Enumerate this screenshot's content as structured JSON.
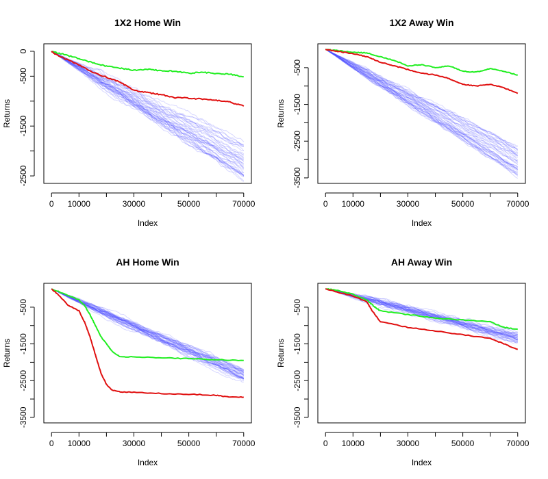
{
  "figure": {
    "x_axis_label": "Index",
    "y_axis_label": "Returns"
  },
  "colors": {
    "random_series": "#4d4dff",
    "green_series": "#22ee22",
    "red_series": "#e01010"
  },
  "chart_data": [
    {
      "type": "line",
      "title": "1X2 Home Win",
      "xlabel": "Index",
      "ylabel": "Returns",
      "xlim": [
        -2800,
        72800
      ],
      "ylim": [
        -2650,
        150
      ],
      "x_ticks": [
        0,
        10000,
        30000,
        50000,
        70000
      ],
      "x_tick_labels": [
        "0",
        "10000",
        "30000",
        "50000",
        "70000"
      ],
      "x_minor_ticks": [
        20000,
        40000,
        60000
      ],
      "y_ticks": [
        0,
        -500,
        -1500,
        -2500
      ],
      "y_tick_labels": [
        "0",
        "-500",
        "-1500",
        "-2500"
      ],
      "y_minor_ticks": [
        -1000,
        -2000
      ],
      "random_band": {
        "count": 40,
        "x_end": 70000,
        "end_mean": -2200,
        "end_spread": 380,
        "color": "#4d4dff",
        "seed": 11
      },
      "series": [
        {
          "color": "#22ee22",
          "x": [
            0,
            2000,
            5000,
            10000,
            15000,
            20000,
            25000,
            30000,
            35000,
            40000,
            45000,
            50000,
            55000,
            60000,
            65000,
            70000
          ],
          "y": [
            0,
            -30,
            -70,
            -150,
            -230,
            -300,
            -340,
            -380,
            -360,
            -390,
            -400,
            -440,
            -420,
            -450,
            -460,
            -510
          ]
        },
        {
          "color": "#e01010",
          "x": [
            0,
            2000,
            5000,
            10000,
            15000,
            20000,
            25000,
            30000,
            35000,
            40000,
            45000,
            50000,
            55000,
            60000,
            65000,
            70000
          ],
          "y": [
            0,
            -80,
            -150,
            -280,
            -420,
            -520,
            -620,
            -780,
            -830,
            -870,
            -930,
            -940,
            -960,
            -980,
            -1020,
            -1100
          ]
        }
      ]
    },
    {
      "type": "line",
      "title": "1X2 Away Win",
      "xlabel": "Index",
      "ylabel": "Returns",
      "xlim": [
        -2800,
        72800
      ],
      "ylim": [
        -3650,
        150
      ],
      "x_ticks": [
        0,
        10000,
        30000,
        50000,
        70000
      ],
      "x_tick_labels": [
        "0",
        "10000",
        "30000",
        "50000",
        "70000"
      ],
      "x_minor_ticks": [
        20000,
        40000,
        60000
      ],
      "y_ticks": [
        -500,
        -1500,
        -2500,
        -3500
      ],
      "y_tick_labels": [
        "-500",
        "-1500",
        "-2500",
        "-3500"
      ],
      "y_minor_ticks": [
        -1000,
        -2000,
        -3000
      ],
      "random_band": {
        "count": 40,
        "x_end": 70000,
        "end_mean": -3050,
        "end_spread": 420,
        "color": "#4d4dff",
        "seed": 23
      },
      "series": [
        {
          "color": "#22ee22",
          "x": [
            0,
            2000,
            5000,
            10000,
            15000,
            20000,
            25000,
            30000,
            35000,
            40000,
            45000,
            50000,
            55000,
            60000,
            65000,
            70000
          ],
          "y": [
            0,
            -20,
            -40,
            -80,
            -100,
            -200,
            -300,
            -450,
            -420,
            -500,
            -450,
            -600,
            -620,
            -520,
            -600,
            -700
          ]
        },
        {
          "color": "#e01010",
          "x": [
            0,
            2000,
            5000,
            10000,
            15000,
            20000,
            25000,
            30000,
            35000,
            40000,
            45000,
            50000,
            55000,
            60000,
            65000,
            70000
          ],
          "y": [
            0,
            -30,
            -60,
            -120,
            -200,
            -350,
            -450,
            -550,
            -650,
            -700,
            -800,
            -950,
            -1000,
            -950,
            -1050,
            -1200
          ]
        }
      ]
    },
    {
      "type": "line",
      "title": "AH Home Win",
      "xlabel": "Index",
      "ylabel": "Returns",
      "xlim": [
        -2800,
        72800
      ],
      "ylim": [
        -3650,
        150
      ],
      "x_ticks": [
        0,
        10000,
        30000,
        50000,
        70000
      ],
      "x_tick_labels": [
        "0",
        "10000",
        "30000",
        "50000",
        "70000"
      ],
      "x_minor_ticks": [
        20000,
        40000,
        60000
      ],
      "y_ticks": [
        -500,
        -1500,
        -2500,
        -3500
      ],
      "y_tick_labels": [
        "-500",
        "-1500",
        "-2500",
        "-3500"
      ],
      "y_minor_ticks": [
        -1000,
        -2000,
        -3000
      ],
      "random_band": {
        "count": 40,
        "x_end": 70000,
        "end_mean": -2350,
        "end_spread": 160,
        "color": "#4d4dff",
        "seed": 37
      },
      "series": [
        {
          "color": "#22ee22",
          "x": [
            0,
            5000,
            10000,
            12000,
            14000,
            16000,
            18000,
            20000,
            22000,
            25000,
            30000,
            40000,
            50000,
            60000,
            70000
          ],
          "y": [
            0,
            -150,
            -300,
            -450,
            -700,
            -1000,
            -1300,
            -1500,
            -1700,
            -1850,
            -1850,
            -1880,
            -1900,
            -1930,
            -1950
          ]
        },
        {
          "color": "#e01010",
          "x": [
            0,
            3000,
            6000,
            10000,
            12000,
            14000,
            16000,
            18000,
            20000,
            22000,
            25000,
            30000,
            40000,
            50000,
            60000,
            65000,
            70000
          ],
          "y": [
            0,
            -200,
            -450,
            -600,
            -900,
            -1300,
            -1800,
            -2300,
            -2600,
            -2750,
            -2800,
            -2820,
            -2850,
            -2870,
            -2900,
            -2950,
            -2950
          ]
        }
      ]
    },
    {
      "type": "line",
      "title": "AH Away Win",
      "xlabel": "Index",
      "ylabel": "Returns",
      "xlim": [
        -2800,
        72800
      ],
      "ylim": [
        -3650,
        150
      ],
      "x_ticks": [
        0,
        10000,
        30000,
        50000,
        70000
      ],
      "x_tick_labels": [
        "0",
        "10000",
        "30000",
        "50000",
        "70000"
      ],
      "x_minor_ticks": [
        20000,
        40000,
        60000
      ],
      "y_ticks": [
        -500,
        -1500,
        -2500,
        -3500
      ],
      "y_tick_labels": [
        "-500",
        "-1500",
        "-2500",
        "-3500"
      ],
      "y_minor_ticks": [
        -1000,
        -2000,
        -3000
      ],
      "random_band": {
        "count": 40,
        "x_end": 70000,
        "end_mean": -1350,
        "end_spread": 120,
        "color": "#4d4dff",
        "seed": 51
      },
      "series": [
        {
          "color": "#22ee22",
          "x": [
            0,
            5000,
            10000,
            15000,
            18000,
            20000,
            30000,
            40000,
            50000,
            60000,
            65000,
            70000
          ],
          "y": [
            0,
            -50,
            -150,
            -300,
            -500,
            -600,
            -700,
            -800,
            -850,
            -900,
            -1050,
            -1100
          ]
        },
        {
          "color": "#e01010",
          "x": [
            0,
            5000,
            10000,
            15000,
            17000,
            20000,
            30000,
            40000,
            50000,
            60000,
            65000,
            70000
          ],
          "y": [
            0,
            -100,
            -200,
            -350,
            -600,
            -900,
            -1050,
            -1150,
            -1250,
            -1350,
            -1500,
            -1650
          ]
        }
      ]
    }
  ]
}
